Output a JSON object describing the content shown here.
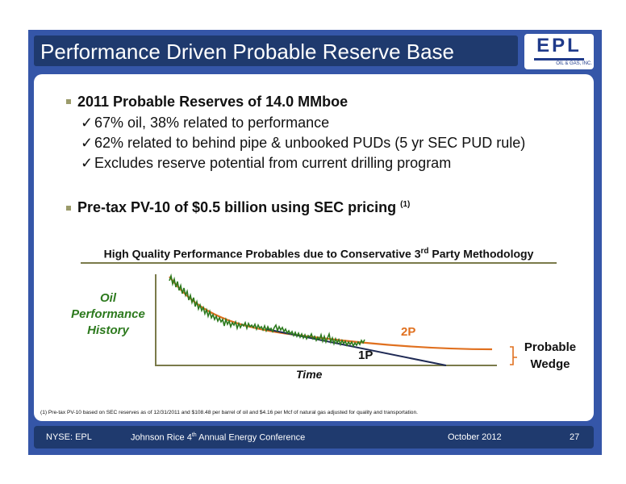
{
  "slide": {
    "title": "Performance Driven Probable Reserve Base",
    "logo": {
      "main": "EPL",
      "sub": "OIL & GAS, INC."
    },
    "bullets": [
      {
        "text": "2011 Probable Reserves of 14.0 MMboe",
        "subs": [
          "67% oil, 38% related to performance",
          "62%  related to behind pipe & unbooked  PUDs (5 yr SEC PUD rule)",
          "Excludes reserve potential from current drilling program"
        ]
      },
      {
        "text": "Pre-tax PV-10 of $0.5 billion using SEC pricing",
        "sup": "(1)"
      }
    ]
  },
  "chart": {
    "title_pre": "High Quality Performance Probables due to Conservative 3",
    "title_sup": "rd",
    "title_post": " Party Methodology",
    "y_label_line1": "Oil",
    "y_label_line2": "Performance",
    "y_label_line3": "History",
    "x_label": "Time",
    "label_2p": "2P",
    "label_1p": "1P",
    "wedge_line1": "Probable",
    "wedge_line2": "Wedge"
  },
  "chart_data": {
    "type": "line",
    "title": "High Quality Performance Probables due to Conservative 3rd Party Methodology",
    "xlabel": "Time",
    "ylabel": "Oil Performance History",
    "series": [
      {
        "name": "Oil Performance History",
        "shape": "noisy declining history"
      },
      {
        "name": "2P",
        "shape": "hyperbolic decline flattening to plateau"
      },
      {
        "name": "1P",
        "shape": "linear decline to zero"
      }
    ],
    "annotations": [
      "Probable Wedge"
    ],
    "colors": {
      "history": "#2d7a1e",
      "2p": "#e0701f",
      "1p": "#1f2a55"
    }
  },
  "footnote": "(1)    Pre-tax PV-10 based on SEC reserves as of 12/31/2011 and $108.48 per barrel of oil and $4.16 per Mcf of natural gas adjusted for quality and transportation.",
  "footer": {
    "ticker": "NYSE: EPL",
    "event_pre": "Johnson Rice 4",
    "event_sup": "th",
    "event_post": " Annual Energy Conference",
    "date": "October 2012",
    "page": "27"
  },
  "colors": {
    "frame": "#3556a8",
    "title_bar": "#1f3a6e",
    "accent_green": "#2d7a1e",
    "accent_orange": "#e0701f"
  }
}
